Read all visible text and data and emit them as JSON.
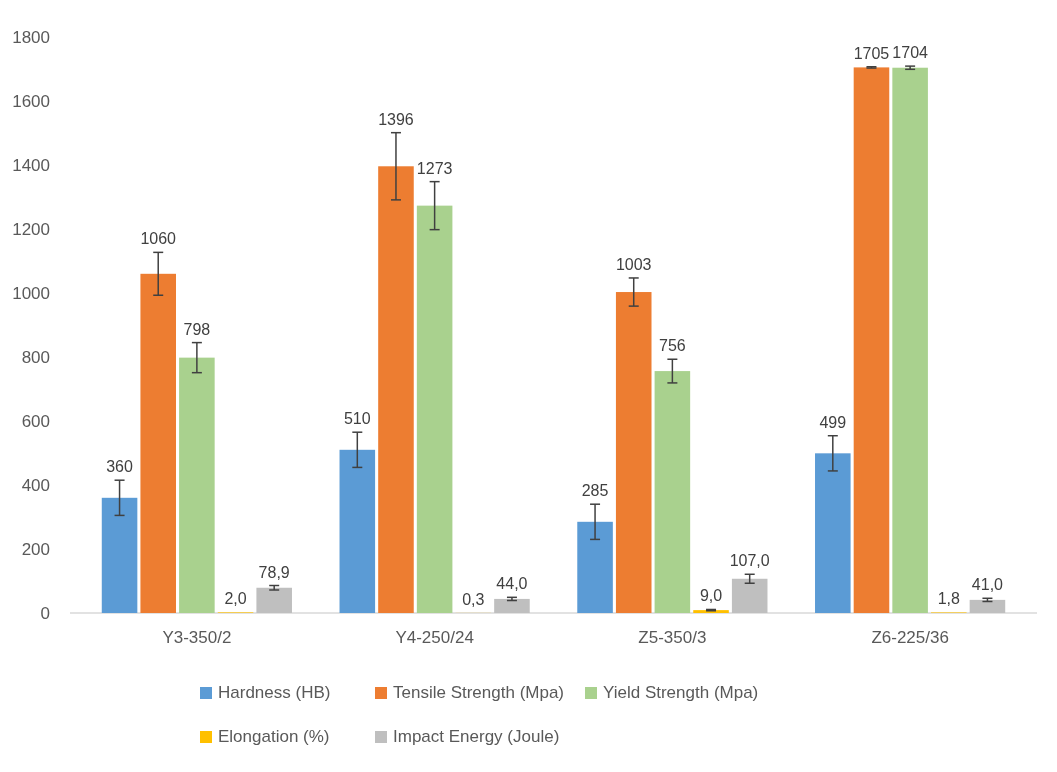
{
  "chart_data": {
    "type": "bar",
    "categories": [
      "Y3-350/2",
      "Y4-250/24",
      "Z5-350/3",
      "Z6-225/36"
    ],
    "series": [
      {
        "name": "Hardness (HB)",
        "color": "#5b9bd5",
        "values": [
          360,
          510,
          285,
          499
        ],
        "errors": [
          55,
          55,
          55,
          55
        ],
        "value_labels": [
          "360",
          "510",
          "285",
          "499"
        ]
      },
      {
        "name": "Tensile Strength (Mpa)",
        "color": "#ed7d31",
        "values": [
          1060,
          1396,
          1003,
          1705
        ],
        "errors": [
          67,
          105,
          44,
          2
        ],
        "value_labels": [
          "1060",
          "1396",
          "1003",
          "1705"
        ]
      },
      {
        "name": "Yield Strength (Mpa)",
        "color": "#a9d18e",
        "values": [
          798,
          1273,
          756,
          1704
        ],
        "errors": [
          47,
          75,
          37,
          5
        ],
        "value_labels": [
          "798",
          "1273",
          "756",
          "1704"
        ]
      },
      {
        "name": "Elongation (%)",
        "color": "#ffc000",
        "values": [
          2.0,
          0.3,
          9.0,
          1.8
        ],
        "errors": [
          null,
          null,
          2,
          null
        ],
        "value_labels": [
          "2,0",
          "0,3",
          "9,0",
          "1,8"
        ]
      },
      {
        "name": "Impact Energy (Joule)",
        "color": "#bfbfbf",
        "values": [
          78.9,
          44.0,
          107.0,
          41.0
        ],
        "errors": [
          7,
          5,
          14,
          5
        ],
        "value_labels": [
          "78,9",
          "44,0",
          "107,0",
          "41,0"
        ]
      }
    ],
    "ylim": [
      0,
      1800
    ],
    "yticks": [
      0,
      200,
      400,
      600,
      800,
      1000,
      1200,
      1400,
      1600,
      1800
    ],
    "legend": "bottom"
  }
}
